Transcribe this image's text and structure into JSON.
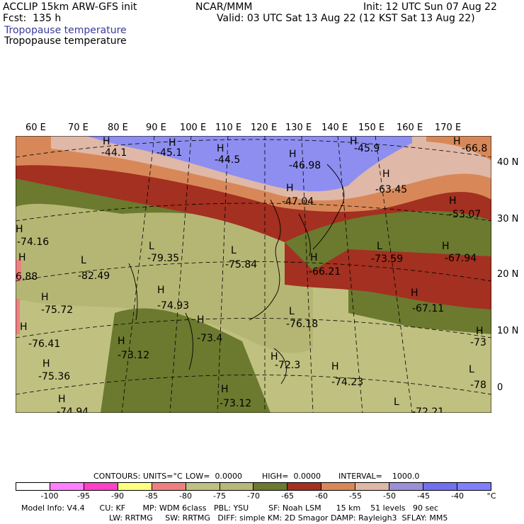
{
  "header": {
    "line1_left": "ACCLIP 15km ARW-GFS init",
    "line1_center": "NCAR/MMM",
    "line1_right": "Init: 12 UTC Sun 07 Aug 22",
    "line2_left": "Fcst:  135 h",
    "line2_right": "Valid: 03 UTC Sat 13 Aug 22 (12 KST Sat 13 Aug 22)",
    "field_shaded": "Tropopause temperature",
    "field_contour": "Tropopause temperature",
    "field_shaded_color": "#3a3aa0"
  },
  "lon_labels": [
    "60 E",
    "70 E",
    "80 E",
    "90 E",
    "100 E",
    "110 E",
    "120 E",
    "130 E",
    "140 E",
    "150 E",
    "160 E",
    "170 E"
  ],
  "lat_labels": [
    "40 N",
    "30 N",
    "20 N",
    "10 N",
    "0"
  ],
  "markers": [
    {
      "type": "H",
      "value": "-44.1"
    },
    {
      "type": "H",
      "value": "-45.1"
    },
    {
      "type": "H",
      "value": "-44.5"
    },
    {
      "type": "H",
      "value": "-46.98"
    },
    {
      "type": "H",
      "value": "-45.9"
    },
    {
      "type": "H",
      "value": "-66.8"
    },
    {
      "type": "H",
      "value": "-63.45"
    },
    {
      "type": "H",
      "value": "-47.04"
    },
    {
      "type": "H",
      "value": "-53.07"
    },
    {
      "type": "H",
      "value": "-74.16"
    },
    {
      "type": "L",
      "value": "-79.35"
    },
    {
      "type": "L",
      "value": "-75.84"
    },
    {
      "type": "L",
      "value": "-73.59"
    },
    {
      "type": "H",
      "value": "-67.94"
    },
    {
      "type": "H",
      "value": "6.88"
    },
    {
      "type": "L",
      "value": "-82.49"
    },
    {
      "type": "H",
      "value": "-66.21"
    },
    {
      "type": "H",
      "value": "-75.72"
    },
    {
      "type": "H",
      "value": "-74.93"
    },
    {
      "type": "H",
      "value": "-67.11"
    },
    {
      "type": "L",
      "value": "-76.18"
    },
    {
      "type": "H",
      "value": "-76.41"
    },
    {
      "type": "H",
      "value": "-73.4"
    },
    {
      "type": "H",
      "value": "-73.12"
    },
    {
      "type": "H",
      "value": "-73"
    },
    {
      "type": "H",
      "value": "-75.36"
    },
    {
      "type": "H",
      "value": "-72.3"
    },
    {
      "type": "H",
      "value": "-74.23"
    },
    {
      "type": "L",
      "value": "-78"
    },
    {
      "type": "H",
      "value": "-74.94"
    },
    {
      "type": "H",
      "value": "-73.12"
    },
    {
      "type": "L",
      "value": "-72.21"
    }
  ],
  "contours_info": {
    "contours": "CONTOURS:",
    "units": "UNITS=°C",
    "low": "LOW=  0.0000",
    "high": "HIGH=  0.0000",
    "interval": "INTERVAL=    1000.0"
  },
  "colorbar": {
    "colors": [
      "#ffffff",
      "#ff80ff",
      "#ff40c8",
      "#ffff80",
      "#f08080",
      "#c0c080",
      "#b8b878",
      "#6b7a2e",
      "#a33020",
      "#d88858",
      "#e0b8a8",
      "#9a90d8",
      "#7070f0",
      "#8080ff"
    ],
    "labels": [
      "-100",
      "-95",
      "-90",
      "-85",
      "-80",
      "-75",
      "-70",
      "-65",
      "-60",
      "-55",
      "-50",
      "-45",
      "-40",
      "°C"
    ]
  },
  "model_info": {
    "line1": "Model Info: V4.4      CU: KF       MP: WDM 6class   PBL: YSU        SF: Noah LSM      15 km    51 levels   90 sec",
    "line2": "LW: RRTMG     SW: RRTMG   DIFF: simple KM: 2D Smagor DAMP: Rayleigh3  SFLAY: MM5"
  }
}
